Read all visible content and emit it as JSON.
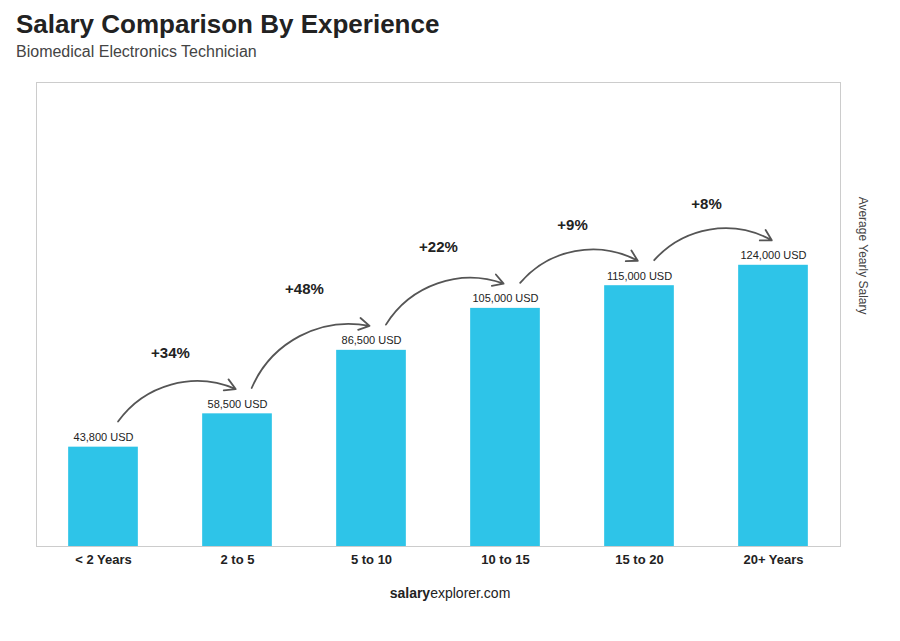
{
  "chart_data": {
    "type": "bar",
    "title": "Salary Comparison By Experience",
    "subtitle": "Biomedical Electronics Technician",
    "categories": [
      "< 2 Years",
      "2 to 5",
      "5 to 10",
      "10 to 15",
      "15 to 20",
      "20+ Years"
    ],
    "values": [
      43800,
      58500,
      86500,
      105000,
      115000,
      124000
    ],
    "value_labels": [
      "43,800 USD",
      "58,500 USD",
      "86,500 USD",
      "105,000 USD",
      "115,000 USD",
      "124,000 USD"
    ],
    "data_labels": true,
    "color": "#2ec4e8",
    "annotations": [
      "+34%",
      "+48%",
      "+22%",
      "+9%",
      "+8%"
    ],
    "ylabel": "Average Yearly Salary",
    "caption": [
      "salary",
      "explorer.com"
    ],
    "ylim": [
      0,
      204600
    ],
    "tick_labels": "x",
    "grid": false
  }
}
